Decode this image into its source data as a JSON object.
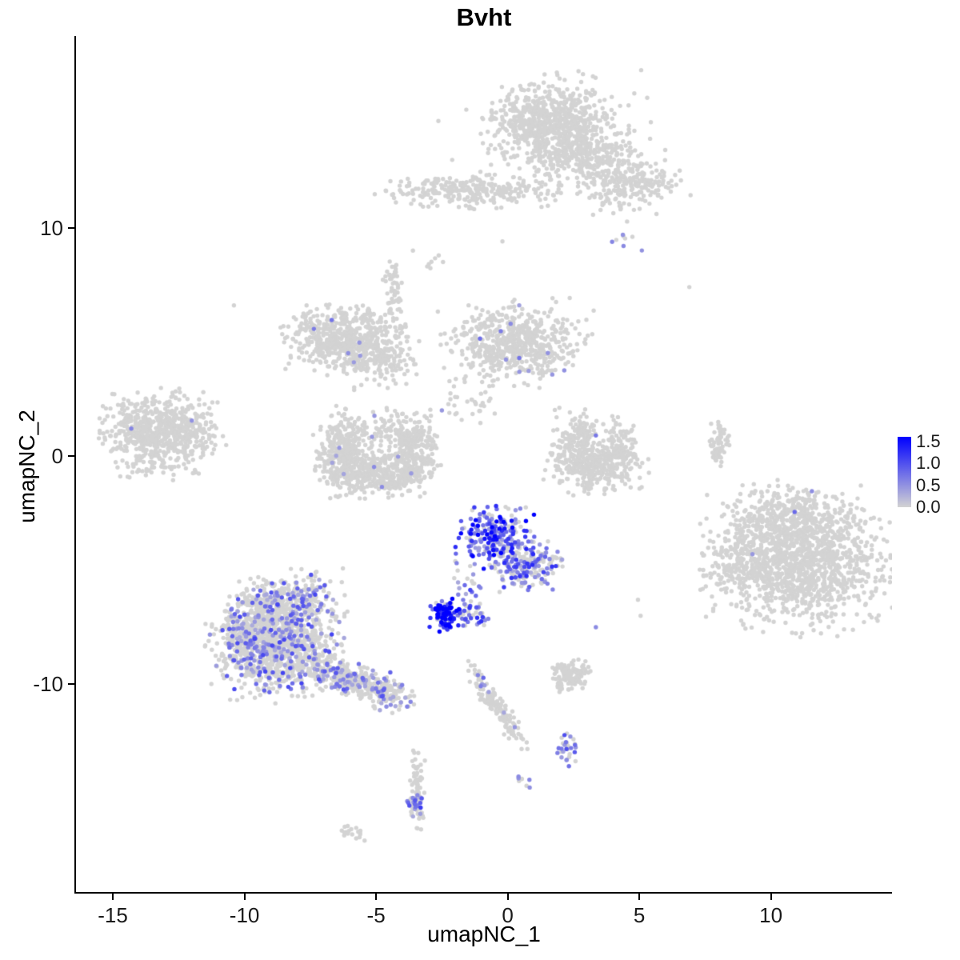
{
  "chart_data": {
    "type": "scatter",
    "title": "Bvht",
    "xlabel": "umapNC_1",
    "ylabel": "umapNC_2",
    "xlim": [
      -16.4,
      14.6
    ],
    "ylim": [
      -19.1,
      18.4
    ],
    "x_ticks": [
      {
        "v": -15,
        "label": "-15"
      },
      {
        "v": -10,
        "label": "-10"
      },
      {
        "v": -5,
        "label": "-5"
      },
      {
        "v": 0,
        "label": "0"
      },
      {
        "v": 5,
        "label": "5"
      },
      {
        "v": 10,
        "label": "10"
      }
    ],
    "y_ticks": [
      {
        "v": 10,
        "label": "10"
      },
      {
        "v": 0,
        "label": "0"
      },
      {
        "v": -10,
        "label": "-10"
      }
    ],
    "legend": {
      "max": 1.6,
      "ticks": [
        {
          "v": 1.5,
          "label": "1.5"
        },
        {
          "v": 1.0,
          "label": "1.0"
        },
        {
          "v": 0.5,
          "label": "0.5"
        },
        {
          "v": 0.0,
          "label": "0.0"
        }
      ]
    },
    "colors": {
      "low": "#d3d3d3",
      "high": "#0000ff",
      "axis": "#000000",
      "background": "#ffffff"
    },
    "point_size": 2.7,
    "grid": false,
    "clusters": [
      {
        "name": "top-core",
        "cx": 1.6,
        "cy": 14.6,
        "sx": 1.05,
        "sy": 0.85,
        "n": 700
      },
      {
        "name": "top-mid",
        "cx": 3.1,
        "cy": 13.1,
        "sx": 0.9,
        "sy": 0.7,
        "n": 260
      },
      {
        "name": "top-right-arm",
        "cx": 4.8,
        "cy": 11.9,
        "sx": 0.85,
        "sy": 0.55,
        "n": 200
      },
      {
        "name": "top-halo",
        "cx": 2.2,
        "cy": 13.9,
        "sx": 1.9,
        "sy": 1.2,
        "n": 130
      },
      {
        "name": "top-right-tip",
        "cx": 4.5,
        "cy": 9.6,
        "sx": 0.35,
        "sy": 0.4,
        "n": 8,
        "frac": 0.25,
        "emin": 0.4,
        "emax": 0.7
      },
      {
        "name": "band-upper",
        "cx": -1.3,
        "cy": 11.6,
        "sx": 1.55,
        "sy": 0.33,
        "n": 280
      },
      {
        "name": "band-left-dots",
        "cx": -2.8,
        "cy": 8.6,
        "sx": 0.3,
        "sy": 0.4,
        "n": 7
      },
      {
        "name": "butterfly-left",
        "cx": -6.9,
        "cy": 5.1,
        "sx": 0.7,
        "sy": 0.6,
        "n": 300,
        "frac": 0.012,
        "emin": 0.35,
        "emax": 0.8
      },
      {
        "name": "butterfly-right",
        "cx": -5.1,
        "cy": 4.6,
        "sx": 0.72,
        "sy": 0.68,
        "n": 350,
        "frac": 0.006,
        "emin": 0.3,
        "emax": 0.7
      },
      {
        "name": "butterfly-top",
        "cx": -5.9,
        "cy": 6.1,
        "sx": 0.85,
        "sy": 0.3,
        "n": 70
      },
      {
        "name": "butterfly-trail",
        "cx": -4.35,
        "cy": 7.3,
        "sx": 0.16,
        "sy": 0.55,
        "n": 50
      },
      {
        "name": "center-top",
        "cx": 0.3,
        "cy": 4.9,
        "sx": 1.15,
        "sy": 0.78,
        "n": 620,
        "frac": 0.01,
        "emin": 0.35,
        "emax": 0.9
      },
      {
        "name": "center-top-below",
        "cx": -1.3,
        "cy": 2.3,
        "sx": 0.45,
        "sy": 0.4,
        "n": 30
      },
      {
        "name": "ucluster-left",
        "cx": -6.3,
        "cy": 0.3,
        "sx": 0.45,
        "sy": 0.8,
        "n": 250,
        "frac": 0.004,
        "emin": 0.3,
        "emax": 0.6
      },
      {
        "name": "ucluster-bottom",
        "cx": -5.0,
        "cy": -0.75,
        "sx": 0.95,
        "sy": 0.45,
        "n": 420,
        "frac": 0.004,
        "emin": 0.3,
        "emax": 0.6
      },
      {
        "name": "ucluster-right",
        "cx": -3.6,
        "cy": 0.3,
        "sx": 0.45,
        "sy": 0.75,
        "n": 250
      },
      {
        "name": "ucluster-top",
        "cx": -5.0,
        "cy": 1.2,
        "sx": 0.95,
        "sy": 0.4,
        "n": 90,
        "frac": 0.01,
        "emin": 0.3,
        "emax": 0.6
      },
      {
        "name": "far-left",
        "cx": -13.2,
        "cy": 1.0,
        "sx": 1.0,
        "sy": 0.8,
        "n": 700,
        "frac": 0.003,
        "emin": 0.3,
        "emax": 0.6
      },
      {
        "name": "hook-left-arm",
        "cx": 2.6,
        "cy": 0.8,
        "sx": 0.45,
        "sy": 0.6,
        "n": 150
      },
      {
        "name": "hook-bottom",
        "cx": 3.3,
        "cy": -0.45,
        "sx": 0.8,
        "sy": 0.5,
        "n": 300
      },
      {
        "name": "hook-right-arm",
        "cx": 4.3,
        "cy": 0.3,
        "sx": 0.35,
        "sy": 0.6,
        "n": 120
      },
      {
        "name": "right-strand",
        "cx": 8.05,
        "cy": 0.5,
        "sx": 0.16,
        "sy": 0.55,
        "n": 70
      },
      {
        "name": "right-core",
        "cx": 11.2,
        "cy": -4.6,
        "sx": 1.5,
        "sy": 1.3,
        "n": 1300,
        "frac": 0.001,
        "emin": 0.3,
        "emax": 0.6
      },
      {
        "name": "right-top",
        "cx": 10.6,
        "cy": -2.6,
        "sx": 1.0,
        "sy": 0.6,
        "n": 260,
        "frac": 0.003,
        "emin": 0.4,
        "emax": 0.8
      },
      {
        "name": "right-left-edge",
        "cx": 8.7,
        "cy": -4.9,
        "sx": 0.7,
        "sy": 0.9,
        "n": 160
      },
      {
        "name": "express-main",
        "cx": -0.6,
        "cy": -3.5,
        "sx": 0.62,
        "sy": 0.62,
        "n": 230,
        "frac": 0.72,
        "emin": 0.35,
        "emax": 1.8,
        "skew": 1.3
      },
      {
        "name": "express-trail",
        "cx": 0.6,
        "cy": -4.8,
        "sx": 0.6,
        "sy": 0.5,
        "n": 150,
        "frac": 0.5,
        "emin": 0.3,
        "emax": 1.3
      },
      {
        "name": "express-right",
        "cx": 1.35,
        "cy": -4.7,
        "sx": 0.3,
        "sy": 0.45,
        "n": 40,
        "frac": 0.35,
        "emin": 0.3,
        "emax": 1.0
      },
      {
        "name": "express-connector",
        "cx": -1.5,
        "cy": -5.7,
        "sx": 0.3,
        "sy": 0.5,
        "n": 22,
        "frac": 0.5,
        "emin": 0.3,
        "emax": 1.2
      },
      {
        "name": "dense-knot",
        "cx": -2.35,
        "cy": -6.95,
        "sx": 0.27,
        "sy": 0.33,
        "n": 95,
        "frac": 0.85,
        "emin": 0.6,
        "emax": 1.9,
        "skew": 0.8
      },
      {
        "name": "knot-right",
        "cx": -1.45,
        "cy": -6.9,
        "sx": 0.3,
        "sy": 0.27,
        "n": 35,
        "frac": 0.55,
        "emin": 0.4,
        "emax": 1.3
      },
      {
        "name": "knot-pair",
        "cx": -0.85,
        "cy": -7.15,
        "sx": 0.12,
        "sy": 0.12,
        "n": 6,
        "frac": 0.7,
        "emin": 0.5,
        "emax": 1.2
      },
      {
        "name": "lowerleft-core",
        "cx": -8.8,
        "cy": -8.2,
        "sx": 1.05,
        "sy": 1.05,
        "n": 1100,
        "frac": 0.22,
        "emin": 0.3,
        "emax": 1.1,
        "skew": 1.4
      },
      {
        "name": "lowerleft-top",
        "cx": -8.3,
        "cy": -6.3,
        "sx": 0.9,
        "sy": 0.55,
        "n": 260,
        "frac": 0.15,
        "emin": 0.3,
        "emax": 1.0
      },
      {
        "name": "lowerleft-west",
        "cx": -9.9,
        "cy": -7.6,
        "sx": 0.5,
        "sy": 0.8,
        "n": 130,
        "frac": 0.15,
        "emin": 0.3,
        "emax": 0.9
      },
      {
        "name": "lowerleft-tail",
        "cx": -5.9,
        "cy": -9.8,
        "sx": 1.05,
        "sy": 0.33,
        "rot": -22,
        "n": 360,
        "frac": 0.18,
        "emin": 0.3,
        "emax": 1.0
      },
      {
        "name": "lowerleft-tip",
        "cx": -4.5,
        "cy": -10.5,
        "sx": 0.35,
        "sy": 0.28,
        "n": 60,
        "frac": 0.25,
        "emin": 0.3,
        "emax": 1.0
      },
      {
        "name": "small-bottom-mid",
        "cx": 2.4,
        "cy": -9.6,
        "sx": 0.33,
        "sy": 0.33,
        "n": 130,
        "frac": 0.008,
        "emin": 0.3,
        "emax": 0.6
      },
      {
        "name": "bottom-strand",
        "cx": -0.35,
        "cy": -11.1,
        "sx": 0.95,
        "sy": 0.17,
        "rot": -58,
        "n": 130,
        "frac": 0.02,
        "emin": 0.3,
        "emax": 0.6
      },
      {
        "name": "strand-top-purple",
        "cx": -1.0,
        "cy": -9.8,
        "sx": 0.12,
        "sy": 0.25,
        "n": 8,
        "frac": 0.45,
        "emin": 0.4,
        "emax": 0.9
      },
      {
        "name": "small-purple-bottom",
        "cx": 2.3,
        "cy": -12.9,
        "sx": 0.22,
        "sy": 0.3,
        "n": 30,
        "frac": 0.5,
        "emin": 0.35,
        "emax": 1.1
      },
      {
        "name": "tiny-pair",
        "cx": 0.6,
        "cy": -14.2,
        "sx": 0.14,
        "sy": 0.14,
        "n": 8,
        "frac": 0.6,
        "emin": 0.4,
        "emax": 1.0
      },
      {
        "name": "bottom-tail",
        "cx": -3.45,
        "cy": -14.5,
        "sx": 0.13,
        "sy": 0.8,
        "n": 75,
        "frac": 0.04,
        "emin": 0.3,
        "emax": 0.7
      },
      {
        "name": "bottom-tail-knot",
        "cx": -3.5,
        "cy": -15.3,
        "sx": 0.18,
        "sy": 0.24,
        "n": 26,
        "frac": 0.55,
        "emin": 0.4,
        "emax": 1.2
      },
      {
        "name": "bottom-left-tiny",
        "cx": -5.8,
        "cy": -16.5,
        "sx": 0.24,
        "sy": 0.15,
        "rot": -15,
        "n": 18
      }
    ],
    "singles": [
      [
        -10.4,
        6.6,
        0
      ],
      [
        6.9,
        7.4,
        0
      ],
      [
        4.4,
        9.2,
        0.55
      ],
      [
        -14.3,
        1.2,
        0.6
      ],
      [
        -12.0,
        1.55,
        0.5
      ],
      [
        3.35,
        0.9,
        0.7
      ],
      [
        -2.5,
        2.0,
        0.45
      ],
      [
        2.15,
        3.75,
        0.5
      ],
      [
        10.9,
        -2.45,
        0.8
      ],
      [
        9.3,
        -4.3,
        0.45
      ],
      [
        3.35,
        -7.5,
        0.55
      ],
      [
        5.05,
        -7.0,
        0
      ],
      [
        4.95,
        -6.3,
        0
      ],
      [
        -3.6,
        9.0,
        0
      ],
      [
        -0.2,
        9.4,
        0
      ]
    ]
  }
}
